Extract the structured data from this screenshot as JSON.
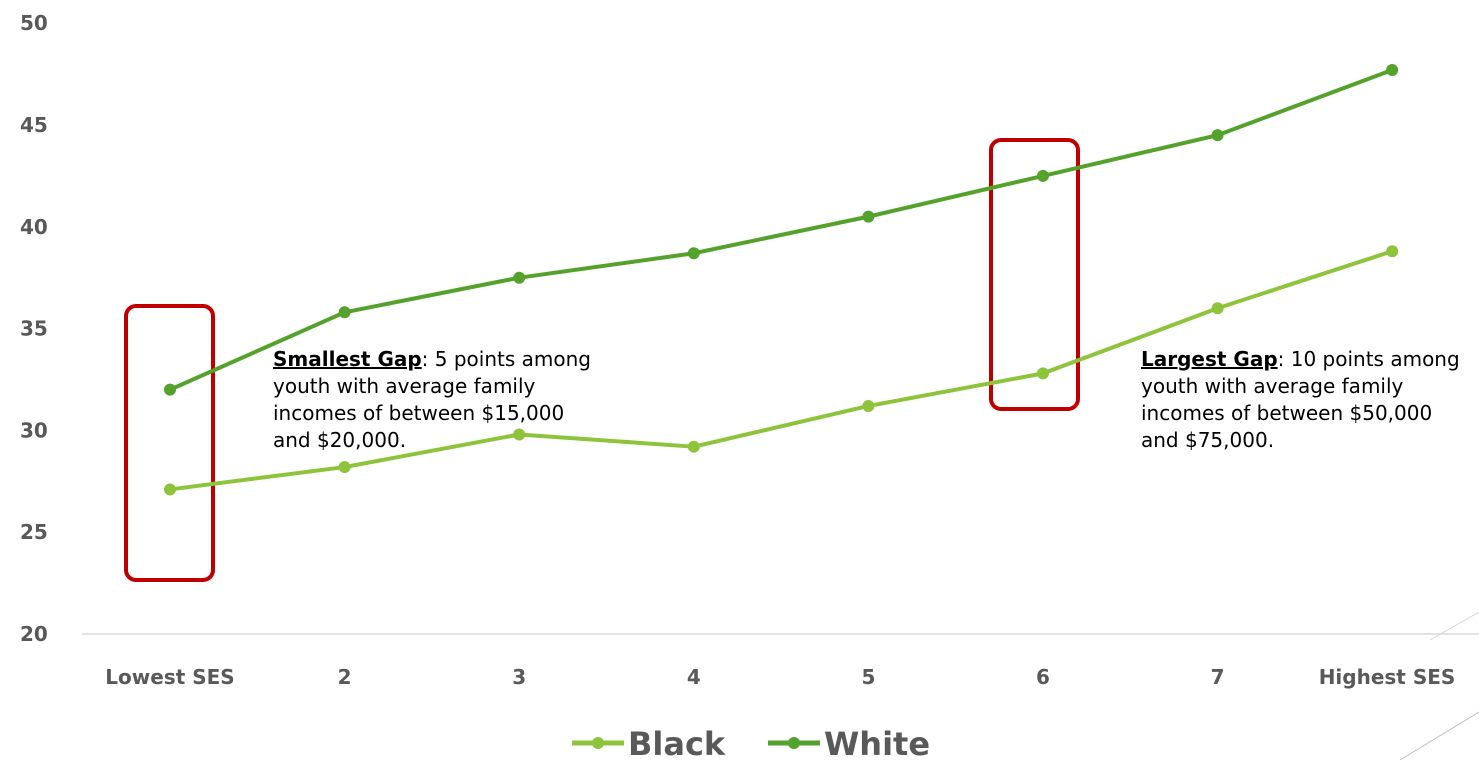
{
  "chart_data": {
    "type": "line",
    "categories": [
      "Lowest SES",
      "2",
      "3",
      "4",
      "5",
      "6",
      "7",
      "Highest SES"
    ],
    "series": [
      {
        "name": "Black",
        "color": "#8dc43b",
        "values": [
          27.1,
          28.2,
          29.8,
          29.2,
          31.2,
          32.8,
          36.0,
          38.8
        ]
      },
      {
        "name": "White",
        "color": "#54a22b",
        "values": [
          32.0,
          35.8,
          37.5,
          38.7,
          40.5,
          42.5,
          44.5,
          47.7
        ]
      }
    ],
    "yticks": [
      "20",
      "25",
      "30",
      "35",
      "40",
      "45",
      "50"
    ],
    "ylim": [
      20,
      50
    ],
    "legend_position": "bottom",
    "highlight_color": "#c00000",
    "annotations": [
      {
        "bold": "Smallest Gap",
        "rest": ": 5 points among youth with average family incomes of between $15,000 and $20,000."
      },
      {
        "bold": "Largest Gap",
        "rest": ": 10 points among youth with average family incomes of between $50,000 and $75,000."
      }
    ]
  }
}
